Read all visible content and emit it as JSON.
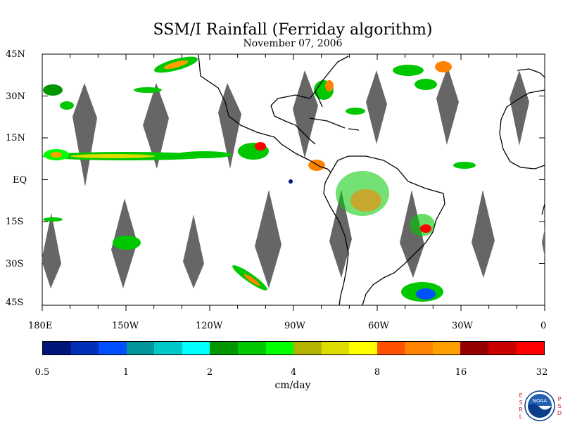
{
  "title": "SSM/I Rainfall (Ferriday algorithm)",
  "subtitle": "November 07, 2006",
  "lat_labels": [
    "45N",
    "30N",
    "15N",
    "EQ",
    "15S",
    "30S",
    "45S"
  ],
  "lon_labels": [
    "180E",
    "150W",
    "120W",
    "90W",
    "60W",
    "30W",
    "0"
  ],
  "colorbar": {
    "colors": [
      "#00167a",
      "#0030b8",
      "#0050ff",
      "#00969a",
      "#00c8c8",
      "#00ffff",
      "#009600",
      "#00c800",
      "#00ff00",
      "#b4b400",
      "#dcdc00",
      "#ffff00",
      "#ff5000",
      "#ff8200",
      "#ffa000",
      "#960000",
      "#c80000",
      "#ff0000"
    ],
    "tick_labels": [
      "0.5",
      "1",
      "2",
      "4",
      "8",
      "16",
      "32"
    ],
    "units": "cm/day"
  },
  "logo": {
    "left_text": "ESRL",
    "right_text": "PSD",
    "center_text": "NOAA"
  }
}
